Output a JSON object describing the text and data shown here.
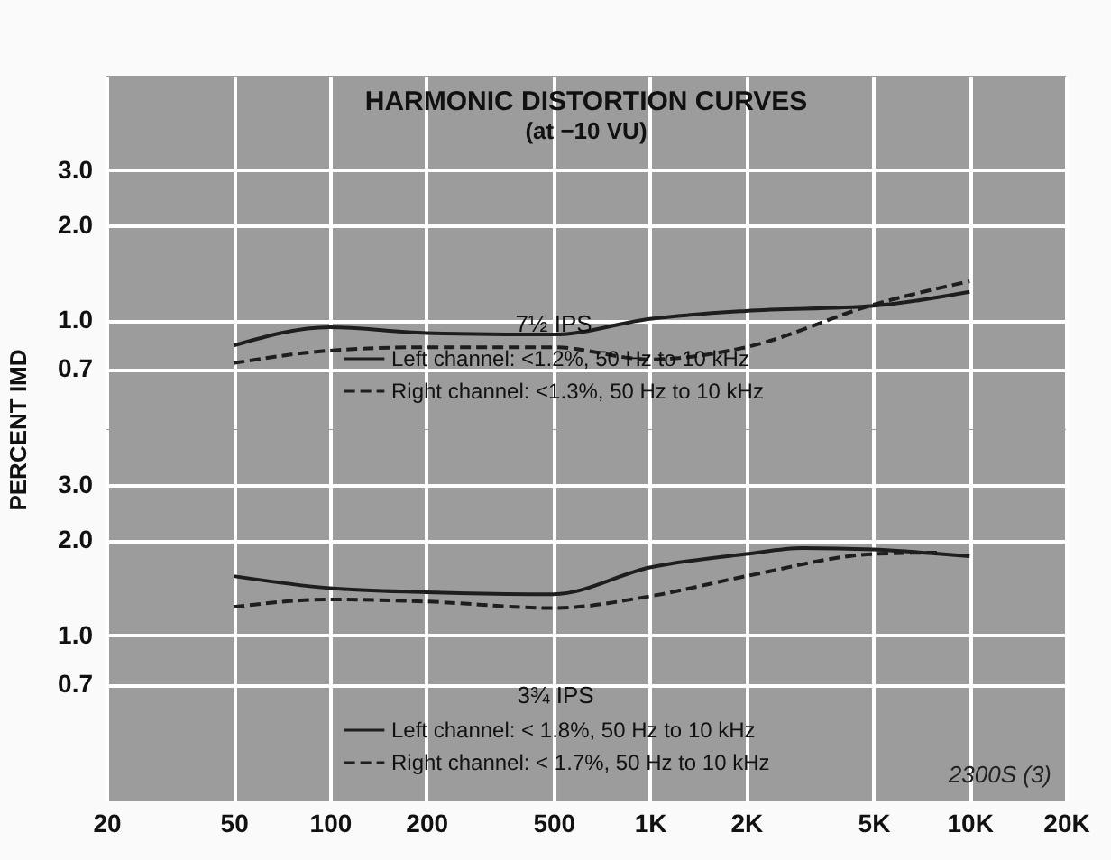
{
  "chart_data": [
    {
      "type": "line",
      "title": "HARMONIC DISTORTION CURVES",
      "subtitle": "(at −10 VU)",
      "ylabel": "PERCENT IMD",
      "legend_title": "7½ IPS",
      "legend": "bottom",
      "grid": true,
      "log": "xy",
      "tick_labels": "y",
      "xlim": [
        20,
        20000
      ],
      "xticks": [
        20,
        50,
        100,
        200,
        500,
        1000,
        2000,
        5000,
        10000,
        20000
      ],
      "ylim": [
        0.45,
        6
      ],
      "yticks": [
        {
          "value": 0.7,
          "label": "0.7"
        },
        {
          "value": 1,
          "label": "1.0"
        },
        {
          "value": 2,
          "label": "2.0"
        },
        {
          "value": 3,
          "label": "3.0"
        }
      ],
      "x": [
        50,
        100,
        200,
        500,
        1000,
        2000,
        5000,
        10000
      ],
      "series": [
        {
          "name": "Left channel: <1.2%, 50 Hz to 10 kHz",
          "color": "#1e1e1e",
          "line_style": "solid",
          "values": [
            0.83,
            0.95,
            0.91,
            0.9,
            1.01,
            1.07,
            1.11,
            1.23
          ]
        },
        {
          "name": "Right channel: <1.3%, 50 Hz to 10 kHz",
          "color": "#1e1e1e",
          "line_style": "dashed",
          "values": [
            0.73,
            0.8,
            0.82,
            0.82,
            0.75,
            0.82,
            1.12,
            1.33
          ]
        }
      ]
    },
    {
      "type": "line",
      "legend_title": "3¾ IPS",
      "legend": "bottom",
      "grid": true,
      "log": "xy",
      "annotations": [
        "2300S (3)"
      ],
      "xlim": [
        20,
        20000
      ],
      "xticks": [
        20,
        50,
        100,
        200,
        500,
        {
          "value": 1000,
          "label": "1K"
        },
        {
          "value": 2000,
          "label": "2K"
        },
        {
          "value": 5000,
          "label": "5K"
        },
        {
          "value": 10000,
          "label": "10K"
        },
        {
          "value": 20000,
          "label": "20K"
        }
      ],
      "ylim": [
        0.3,
        4.5
      ],
      "yticks": [
        {
          "value": 0.7,
          "label": "0.7"
        },
        {
          "value": 1,
          "label": "1.0"
        },
        {
          "value": 2,
          "label": "2.0"
        },
        {
          "value": 3,
          "label": "3.0"
        }
      ],
      "series": [
        {
          "name": "Left channel: < 1.8%, 50 Hz to 10 kHz",
          "color": "#1e1e1e",
          "line_style": "solid",
          "x": [
            50,
            100,
            200,
            500,
            1000,
            2000,
            3000,
            5000,
            10000
          ],
          "values": [
            1.54,
            1.41,
            1.37,
            1.35,
            1.64,
            1.81,
            1.89,
            1.87,
            1.78
          ]
        },
        {
          "name": "Right channel: < 1.7%, 50 Hz to 10 kHz",
          "color": "#1e1e1e",
          "line_style": "dashed",
          "x": [
            50,
            100,
            200,
            500,
            1000,
            2000,
            5000,
            8000
          ],
          "values": [
            1.23,
            1.3,
            1.28,
            1.22,
            1.33,
            1.54,
            1.81,
            1.83
          ]
        }
      ]
    }
  ]
}
